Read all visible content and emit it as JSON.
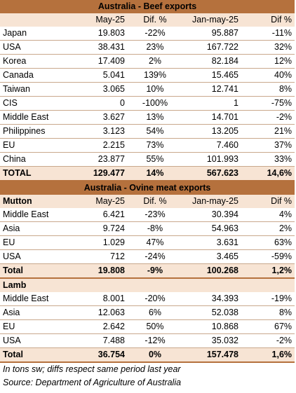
{
  "beef": {
    "title": "Australia - Beef exports",
    "headers": [
      "",
      "May-25",
      "Dif. %",
      "Jan-may-25",
      "Dif %"
    ],
    "rows": [
      [
        "Japan",
        "19.803",
        "-22%",
        "95.887",
        "-11%"
      ],
      [
        "USA",
        "38.431",
        "23%",
        "167.722",
        "32%"
      ],
      [
        "Korea",
        "17.409",
        "2%",
        "82.184",
        "12%"
      ],
      [
        "Canada",
        "5.041",
        "139%",
        "15.465",
        "40%"
      ],
      [
        "Taiwan",
        "3.065",
        "10%",
        "12.741",
        "8%"
      ],
      [
        "CIS",
        "0",
        "-100%",
        "1",
        "-75%"
      ],
      [
        "Middle East",
        "3.627",
        "13%",
        "14.701",
        "-2%"
      ],
      [
        "Philippines",
        "3.123",
        "54%",
        "13.205",
        "21%"
      ],
      [
        "EU",
        "2.215",
        "73%",
        "7.460",
        "37%"
      ],
      [
        "China",
        "23.877",
        "55%",
        "101.993",
        "33%"
      ]
    ],
    "total": [
      "TOTAL",
      "129.477",
      "14%",
      "567.623",
      "14,6%"
    ]
  },
  "ovine": {
    "title": "Australia - Ovine meat exports",
    "mutton": {
      "headers": [
        "Mutton",
        "May-25",
        "Dif. %",
        "Jan-may-25",
        "Dif %"
      ],
      "rows": [
        [
          "Middle East",
          "6.421",
          "-23%",
          "30.394",
          "4%"
        ],
        [
          "Asia",
          "9.724",
          "-8%",
          "54.963",
          "2%"
        ],
        [
          "EU",
          "1.029",
          "47%",
          "3.631",
          "63%"
        ],
        [
          "USA",
          "712",
          "-24%",
          "3.465",
          "-59%"
        ]
      ],
      "total": [
        "Total",
        "19.808",
        "-9%",
        "100.268",
        "1,2%"
      ]
    },
    "lamb": {
      "label": "Lamb",
      "rows": [
        [
          "Middle East",
          "8.001",
          "-20%",
          "34.393",
          "-19%"
        ],
        [
          "Asia",
          "12.063",
          "6%",
          "52.038",
          "8%"
        ],
        [
          "EU",
          "2.642",
          "50%",
          "10.868",
          "67%"
        ],
        [
          "USA",
          "7.488",
          "-12%",
          "35.032",
          "-2%"
        ]
      ],
      "total": [
        "Total",
        "36.754",
        "0%",
        "157.478",
        "1,6%"
      ]
    }
  },
  "notes": {
    "units": "In tons sw; diffs respect same period last year",
    "source": "Source: Department of Agriculture of Australia"
  }
}
